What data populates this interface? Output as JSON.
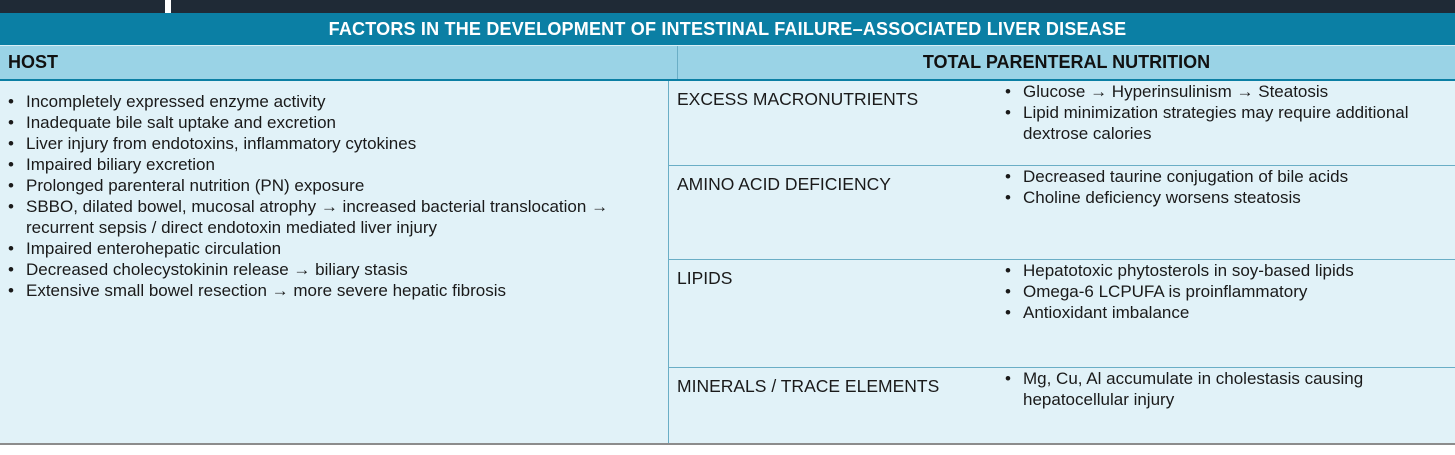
{
  "title": "FACTORS IN THE DEVELOPMENT OF INTESTINAL FAILURE–ASSOCIATED LIVER DISEASE",
  "headers": {
    "host": "HOST",
    "tpn": "TOTAL PARENTERAL NUTRITION"
  },
  "host_items": [
    "Incompletely expressed enzyme activity",
    "Inadequate bile salt uptake and excretion",
    "Liver injury from endotoxins, inflammatory cytokines",
    "Impaired biliary excretion",
    "Prolonged parenteral nutrition (PN) exposure",
    "SBBO, dilated bowel, mucosal atrophy → increased bacterial translocation → recurrent sepsis / direct endotoxin mediated liver injury",
    "Impaired enterohepatic circulation",
    "Decreased cholecystokinin release → biliary stasis",
    "Extensive small bowel resection → more severe hepatic fibrosis"
  ],
  "tpn_rows": [
    {
      "label": "EXCESS MACRONUTRIENTS",
      "items": [
        "Glucose → Hyperinsulinism → Steatosis",
        "Lipid minimization strategies may require additional dextrose calories"
      ]
    },
    {
      "label": "AMINO ACID DEFICIENCY",
      "items": [
        "Decreased taurine conjugation of bile acids",
        "Choline deficiency worsens steatosis"
      ]
    },
    {
      "label": "LIPIDS",
      "items": [
        "Hepatotoxic phytosterols in soy-based lipids",
        "Omega-6 LCPUFA is proinflammatory",
        "Antioxidant imbalance"
      ]
    },
    {
      "label": "MINERALS / TRACE ELEMENTS",
      "items": [
        "Mg, Cu, Al accumulate in cholestasis causing hepatocellular injury"
      ]
    }
  ],
  "colors": {
    "title_bg": "#0b7fa4",
    "header_bg": "#9ad3e6",
    "body_bg": "#e1f2f8"
  }
}
